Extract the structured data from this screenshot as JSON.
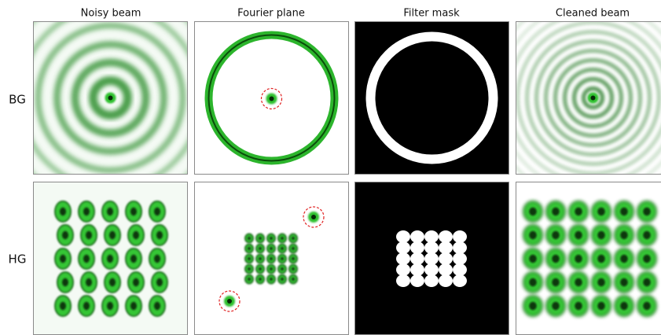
{
  "header": {
    "columns": [
      "Noisy beam",
      "Fourier plane",
      "Filter mask",
      "Cleaned beam"
    ]
  },
  "rows": [
    "BG",
    "HG"
  ]
}
